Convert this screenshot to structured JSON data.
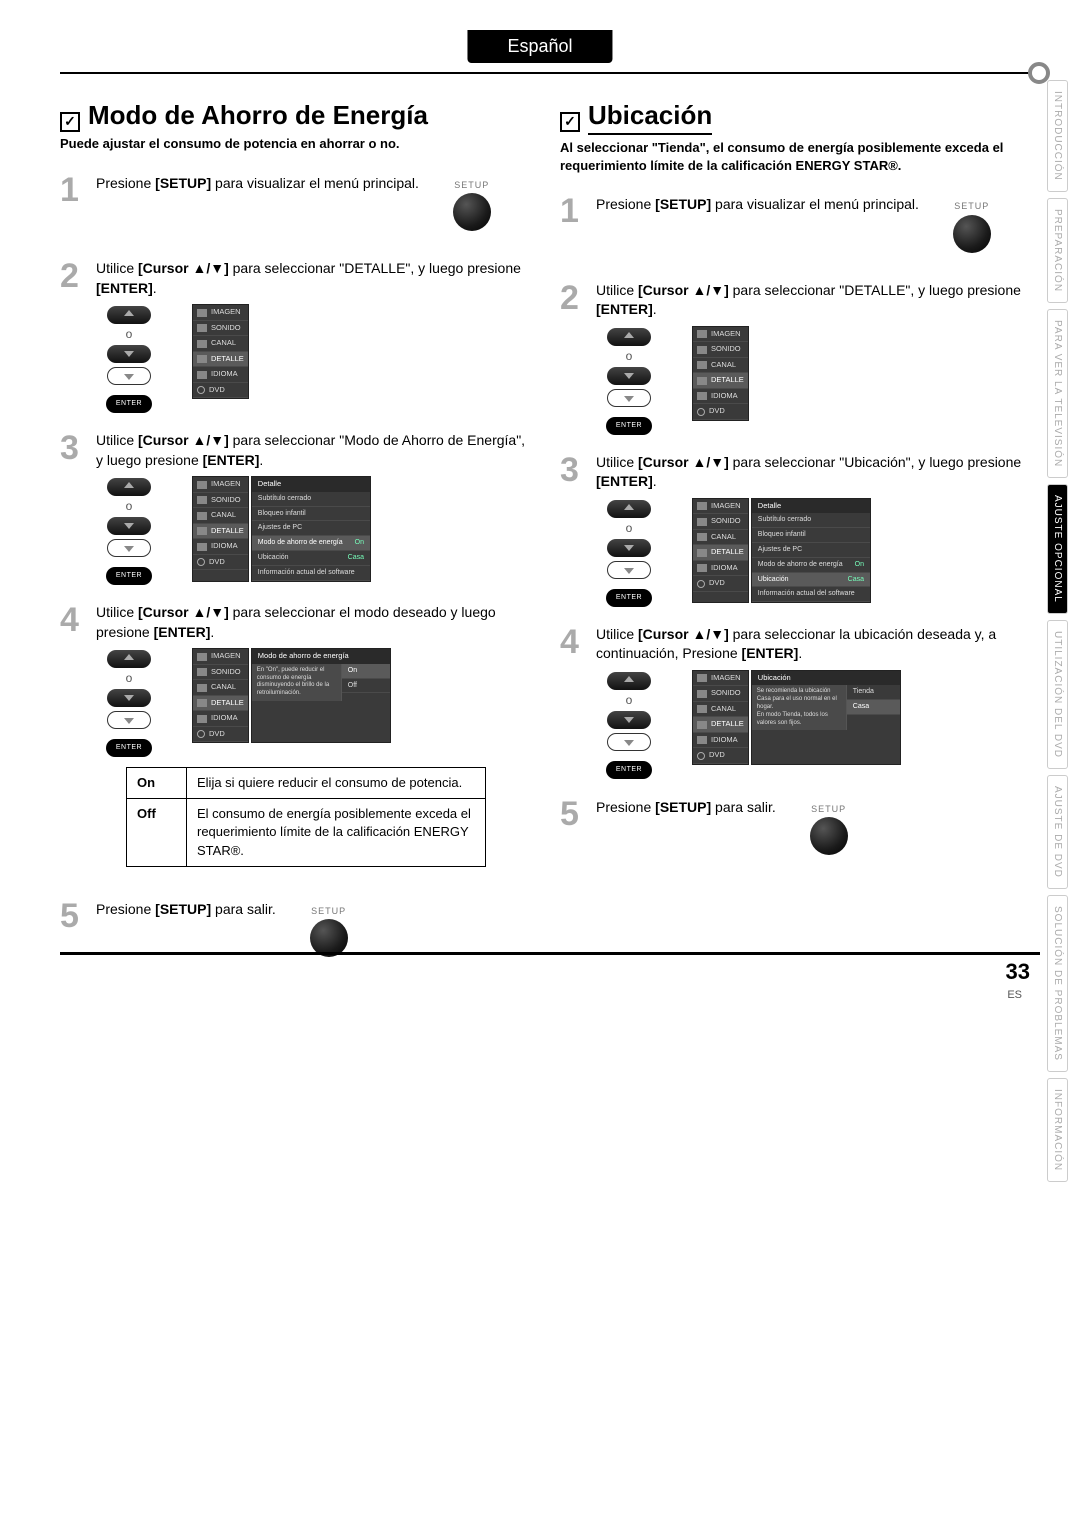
{
  "lang_tab": "Español",
  "page_number": "33",
  "page_lang_code": "ES",
  "side_tabs": [
    {
      "label": "INTRODUCCIÓN",
      "active": false
    },
    {
      "label": "PREPARACIÓN",
      "active": false
    },
    {
      "label": "PARA VER LA TELEVISIÓN",
      "active": false
    },
    {
      "label": "AJUSTE OPCIONAL",
      "active": true
    },
    {
      "label": "UTILIZACIÓN DEL DVD",
      "active": false
    },
    {
      "label": "AJUSTE DE DVD",
      "active": false
    },
    {
      "label": "SOLUCIÓN DE PROBLEMAS",
      "active": false
    },
    {
      "label": "INFORMACIÓN",
      "active": false
    }
  ],
  "remote_labels": {
    "setup": "SETUP",
    "enter": "ENTER"
  },
  "osd_main_items": [
    "IMAGEN",
    "SONIDO",
    "CANAL",
    "DETALLE",
    "IDIOMA",
    "DVD"
  ],
  "left": {
    "title": "Modo de Ahorro de Energía",
    "subtitle": "Puede ajustar el consumo de potencia en ahorrar o no.",
    "steps": {
      "1": {
        "pre": "Presione ",
        "b": "[SETUP]",
        "post": " para visualizar el menú principal."
      },
      "2": {
        "pre": "Utilice ",
        "b": "[Cursor ▲/▼]",
        "mid": " para seleccionar \"DETALLE\", y luego presione ",
        "b2": "[ENTER]",
        "post": "."
      },
      "3": {
        "pre": "Utilice ",
        "b": "[Cursor ▲/▼]",
        "mid": " para seleccionar \"Modo de Ahorro de Energía\", y luego presione ",
        "b2": "[ENTER]",
        "post": "."
      },
      "4": {
        "pre": "Utilice ",
        "b": "[Cursor ▲/▼]",
        "mid": " para seleccionar el modo deseado y luego presione ",
        "b2": "[ENTER]",
        "post": "."
      },
      "5": {
        "pre": "Presione ",
        "b": "[SETUP]",
        "post": " para salir."
      }
    },
    "osd_detalle": {
      "header": "Detalle",
      "rows": [
        {
          "label": "Subtítulo cerrado"
        },
        {
          "label": "Bloqueo infantil"
        },
        {
          "label": "Ajustes de PC"
        },
        {
          "label": "Modo de ahorro de energía",
          "val": "On",
          "sel": true
        },
        {
          "label": "Ubicación",
          "val": "Casa"
        },
        {
          "label": "Información actual del software"
        }
      ]
    },
    "osd_mode": {
      "header": "Modo de ahorro de energía",
      "note": "En \"On\", puede reducir el consumo de energía disminuyendo el brillo de la retroiluminación.",
      "opts": [
        {
          "label": "On",
          "sel": true
        },
        {
          "label": "Off"
        }
      ]
    },
    "options_table": [
      {
        "key": "On",
        "desc": "Elija si quiere reducir el consumo de potencia."
      },
      {
        "key": "Off",
        "desc": "El consumo de energía posiblemente exceda el requerimiento límite de la calificación ENERGY STAR®."
      }
    ]
  },
  "right": {
    "title": "Ubicación",
    "subtitle": "Al seleccionar \"Tienda\", el consumo de energía posiblemente exceda el requerimiento límite de la calificación ENERGY STAR®.",
    "steps": {
      "1": {
        "pre": "Presione ",
        "b": "[SETUP]",
        "post": " para visualizar el menú principal."
      },
      "2": {
        "pre": "Utilice ",
        "b": "[Cursor ▲/▼]",
        "mid": " para seleccionar \"DETALLE\", y luego presione ",
        "b2": "[ENTER]",
        "post": "."
      },
      "3": {
        "pre": "Utilice ",
        "b": "[Cursor ▲/▼]",
        "mid": " para seleccionar \"Ubicación\", y luego presione ",
        "b2": "[ENTER]",
        "post": "."
      },
      "4": {
        "pre": "Utilice ",
        "b": "[Cursor ▲/▼]",
        "mid": " para seleccionar la ubicación deseada y, a continuación, Presione ",
        "b2": "[ENTER]",
        "post": "."
      },
      "5": {
        "pre": "Presione ",
        "b": "[SETUP]",
        "post": " para salir."
      }
    },
    "osd_detalle": {
      "header": "Detalle",
      "rows": [
        {
          "label": "Subtítulo cerrado"
        },
        {
          "label": "Bloqueo infantil"
        },
        {
          "label": "Ajustes de PC"
        },
        {
          "label": "Modo de ahorro de energía",
          "val": "On"
        },
        {
          "label": "Ubicación",
          "val": "Casa",
          "sel": true
        },
        {
          "label": "Información actual del software"
        }
      ]
    },
    "osd_ubic": {
      "header": "Ubicación",
      "note": "Se recomienda la ubicación Casa para el uso normal en el hogar.\nEn modo Tienda, todos los valores son fijos.",
      "opts": [
        {
          "label": "Tienda"
        },
        {
          "label": "Casa",
          "sel": true
        }
      ]
    }
  }
}
